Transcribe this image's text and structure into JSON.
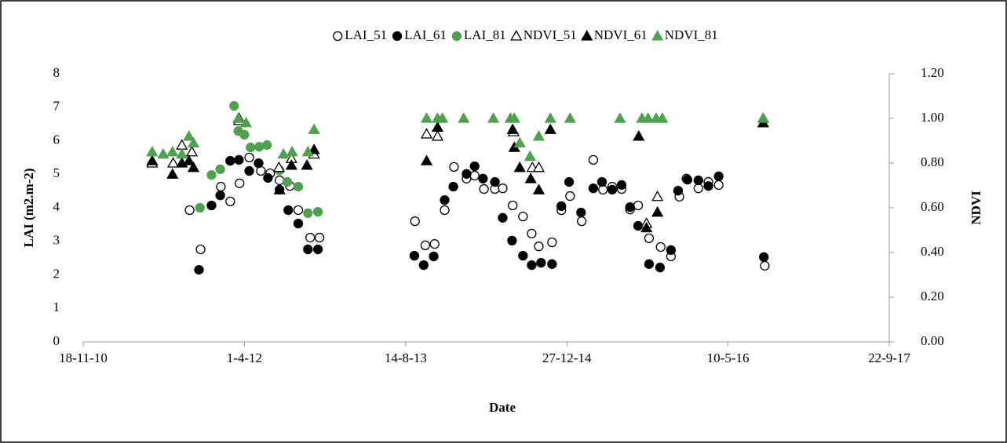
{
  "chart_data": {
    "type": "scatter",
    "x_label": "Date",
    "y_label": "LAI (m2.m-2)",
    "y2_label": "NDVI",
    "xlim": [
      40500,
      43000
    ],
    "xticks": [
      {
        "value": 40500,
        "label": "18-11-10"
      },
      {
        "value": 41000,
        "label": "1-4-12"
      },
      {
        "value": 41500,
        "label": "14-8-13"
      },
      {
        "value": 42000,
        "label": "27-12-14"
      },
      {
        "value": 42500,
        "label": "10-5-16"
      },
      {
        "value": 43000,
        "label": "22-9-17"
      }
    ],
    "ylim": [
      0,
      8
    ],
    "yticks": [
      0,
      1,
      2,
      3,
      4,
      5,
      6,
      7,
      8
    ],
    "y2lim": [
      0,
      1.2
    ],
    "y2ticks": [
      {
        "value": 0,
        "label": "0.00"
      },
      {
        "value": 0.2,
        "label": "0.20"
      },
      {
        "value": 0.4,
        "label": "0.40"
      },
      {
        "value": 0.6,
        "label": "0.60"
      },
      {
        "value": 0.8,
        "label": "0.80"
      },
      {
        "value": 1,
        "label": "1.00"
      },
      {
        "value": 1.2,
        "label": "1.20"
      }
    ],
    "grid": false,
    "legend": "top",
    "series": [
      {
        "name": "LAI_51",
        "color": "#000000",
        "marker": "circle",
        "filled": false,
        "x": [
          40830,
          40864,
          40927,
          40956,
          40985,
          41015,
          41051,
          41080,
          41109,
          41141,
          41167,
          41204,
          41233,
          41529,
          41561,
          41590,
          41621,
          41650,
          41689,
          41714,
          41743,
          41777,
          41801,
          41832,
          41864,
          41891,
          41913,
          41954,
          41983,
          42010,
          42046,
          42082,
          42112,
          42141,
          42170,
          42196,
          42221,
          42255,
          42291,
          42323,
          42349,
          42371,
          42408,
          42439,
          42471,
          42614
        ],
        "values": [
          3.93,
          2.76,
          4.63,
          4.19,
          4.73,
          5.5,
          5.1,
          5.03,
          4.82,
          4.65,
          3.93,
          3.11,
          3.11,
          3.6,
          2.88,
          2.92,
          3.93,
          5.22,
          4.87,
          4.96,
          4.56,
          4.56,
          4.58,
          4.07,
          3.74,
          3.23,
          2.85,
          2.97,
          3.93,
          4.35,
          3.6,
          5.43,
          4.54,
          4.63,
          4.56,
          3.95,
          4.07,
          3.09,
          2.83,
          2.55,
          4.33,
          4.87,
          4.58,
          4.77,
          4.68,
          2.27
        ]
      },
      {
        "name": "LAI_61",
        "color": "#000000",
        "marker": "circle",
        "filled": true,
        "x": [
          40859,
          40898,
          40925,
          40956,
          40983,
          41015,
          41044,
          41073,
          41109,
          41136,
          41167,
          41197,
          41228,
          41527,
          41556,
          41587,
          41621,
          41648,
          41689,
          41714,
          41740,
          41777,
          41801,
          41830,
          41864,
          41891,
          41920,
          41954,
          41983,
          42007,
          42044,
          42082,
          42109,
          42141,
          42170,
          42196,
          42221,
          42255,
          42289,
          42323,
          42345,
          42374,
          42408,
          42439,
          42471,
          42611
        ],
        "values": [
          2.15,
          4.07,
          4.37,
          5.4,
          5.43,
          5.1,
          5.33,
          4.89,
          4.54,
          3.93,
          3.53,
          2.76,
          2.76,
          2.57,
          2.29,
          2.55,
          4.23,
          4.63,
          5.01,
          5.24,
          4.87,
          4.77,
          3.7,
          3.02,
          2.57,
          2.29,
          2.36,
          2.32,
          4.05,
          4.77,
          3.86,
          4.58,
          4.77,
          4.54,
          4.68,
          4.02,
          3.46,
          2.32,
          2.22,
          2.74,
          4.51,
          4.84,
          4.82,
          4.65,
          4.94,
          2.53
        ]
      },
      {
        "name": "LAI_81",
        "color": "#4ea24e",
        "marker": "circle",
        "filled": true,
        "x": [
          40862,
          40898,
          40925,
          40968,
          40981,
          41000,
          41019,
          41046,
          41070,
          41109,
          41133,
          41167,
          41197,
          41228
        ],
        "values": [
          4.0,
          4.98,
          5.15,
          7.04,
          6.29,
          6.18,
          5.8,
          5.82,
          5.87,
          5.12,
          4.77,
          4.63,
          3.84,
          3.88
        ]
      },
      {
        "name": "NDVI_51",
        "color": "#000000",
        "marker": "triangle",
        "filled": false,
        "axis": "y2",
        "x": [
          40714,
          40779,
          40806,
          40837,
          40983,
          41107,
          41146,
          41216,
          41565,
          41599,
          41835,
          41893,
          41913,
          42247,
          42281,
          42609
        ],
        "values": [
          0.8,
          0.8,
          0.88,
          0.85,
          0.99,
          0.78,
          0.82,
          0.84,
          0.93,
          0.92,
          0.94,
          0.78,
          0.78,
          0.53,
          0.65,
          1.0
        ]
      },
      {
        "name": "NDVI_61",
        "color": "#000000",
        "marker": "triangle",
        "filled": true,
        "axis": "y2",
        "x": [
          40714,
          40777,
          40806,
          40828,
          40842,
          40983,
          41109,
          41146,
          41194,
          41216,
          41565,
          41599,
          41832,
          41837,
          41854,
          41888,
          41913,
          41949,
          42223,
          42247,
          42281,
          42609
        ],
        "values": [
          0.81,
          0.75,
          0.8,
          0.81,
          0.78,
          1.0,
          0.68,
          0.79,
          0.79,
          0.86,
          0.81,
          0.96,
          0.95,
          0.87,
          0.78,
          0.73,
          0.68,
          0.95,
          0.92,
          0.51,
          0.58,
          0.98
        ]
      },
      {
        "name": "NDVI_81",
        "color": "#4ea24e",
        "marker": "triangle",
        "filled": true,
        "axis": "y2",
        "x": [
          40714,
          40748,
          40777,
          40806,
          40828,
          40842,
          40981,
          41005,
          41121,
          41148,
          41197,
          41216,
          41565,
          41599,
          41614,
          41680,
          41772,
          41825,
          41837,
          41854,
          41886,
          41913,
          41949,
          42010,
          42165,
          42233,
          42252,
          42277,
          42296,
          42609
        ],
        "values": [
          0.85,
          0.84,
          0.85,
          0.84,
          0.92,
          0.89,
          1.0,
          0.98,
          0.84,
          0.85,
          0.85,
          0.95,
          1.0,
          1.0,
          1.0,
          1.0,
          1.0,
          1.0,
          1.0,
          0.89,
          0.83,
          0.92,
          1.0,
          1.0,
          1.0,
          1.0,
          1.0,
          1.0,
          1.0,
          1.0
        ]
      }
    ]
  }
}
